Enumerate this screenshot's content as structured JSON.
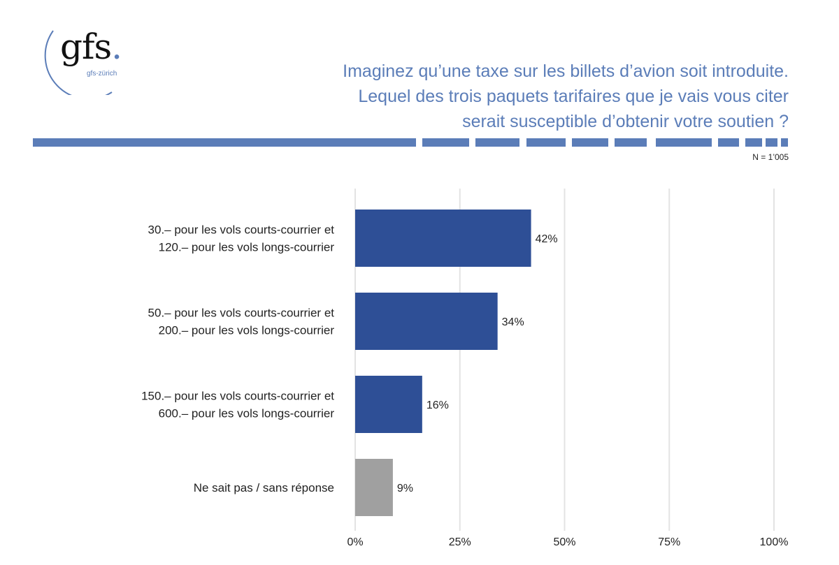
{
  "logo": {
    "text": "gfs",
    "dot": ".",
    "sub": "gfs-zürich"
  },
  "header": {
    "title_lines": [
      "Imaginez qu’une taxe sur les billets d’avion soit introduite.",
      "Lequel des trois paquets tarifaires que je vais vous citer",
      "serait susceptible d’obtenir votre soutien ?"
    ],
    "sample_note": "N = 1’005"
  },
  "colors": {
    "accent": "#5b7db8",
    "bar": "#2e4f96",
    "bar_other": "#a0a0a0",
    "grid": "#e3e3e3"
  },
  "chart_data": {
    "type": "bar",
    "orientation": "horizontal",
    "categories": [
      [
        "30.– pour les vols courts-courrier et",
        "120.– pour les vols longs-courrier"
      ],
      [
        "50.– pour les vols courts-courrier et",
        "200.– pour les vols longs-courrier"
      ],
      [
        "150.– pour les vols courts-courrier et",
        "600.– pour les vols longs-courrier"
      ],
      [
        "Ne sait pas / sans réponse"
      ]
    ],
    "values": [
      42,
      34,
      16,
      9
    ],
    "value_labels": [
      "42%",
      "34%",
      "16%",
      "9%"
    ],
    "xlim": [
      0,
      100
    ],
    "xticks": [
      0,
      25,
      50,
      75,
      100
    ],
    "xtick_labels": [
      "0%",
      "25%",
      "50%",
      "75%",
      "100%"
    ],
    "grid": true,
    "legend": "none"
  }
}
